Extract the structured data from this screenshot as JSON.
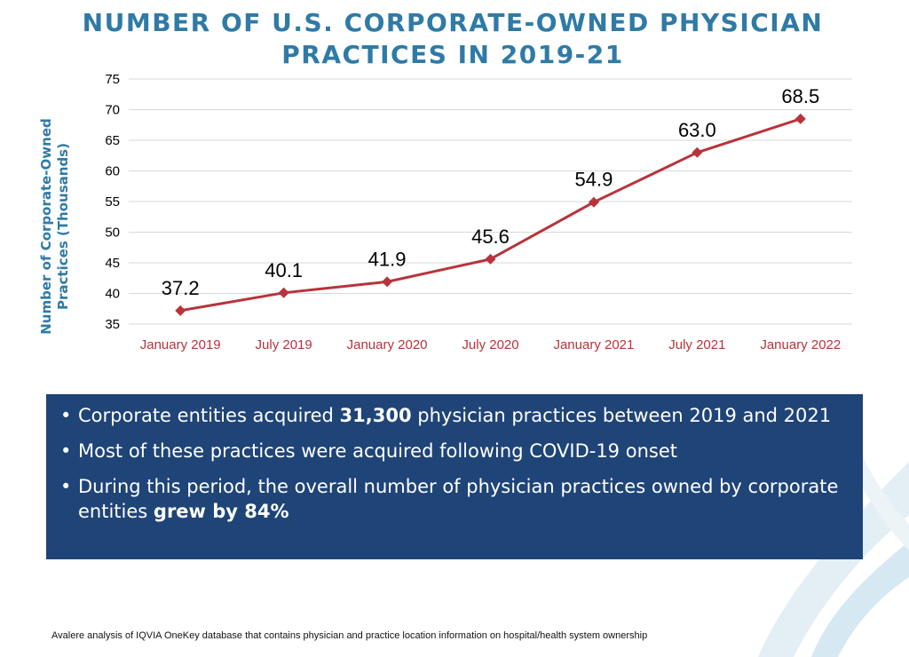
{
  "title_line1": "NUMBER OF U.S. CORPORATE-OWNED PHYSICIAN",
  "title_line2": "PRACTICES IN 2019-21",
  "chart_data": {
    "type": "line",
    "ylabel_line1": "Number of Corporate-Owned",
    "ylabel_line2": "Practices (Thousands)",
    "categories": [
      "January 2019",
      "July 2019",
      "January 2020",
      "July 2020",
      "January 2021",
      "July 2021",
      "January 2022"
    ],
    "values": [
      37.2,
      40.1,
      41.9,
      45.6,
      54.9,
      63.0,
      68.5
    ],
    "data_labels": [
      "37.2",
      "40.1",
      "41.9",
      "45.6",
      "54.9",
      "63.0",
      "68.5"
    ],
    "ylim": [
      35,
      75
    ],
    "yticks": [
      35,
      40,
      45,
      50,
      55,
      60,
      65,
      70,
      75
    ],
    "grid": true,
    "line_color": "#b8333b",
    "tick_color": "#b8333b"
  },
  "bullets": [
    {
      "pre": "Corporate entities acquired ",
      "bold": "31,300",
      "post": " physician practices between 2019 and 2021"
    },
    {
      "pre": "Most of these practices were acquired following COVID-19 onset",
      "bold": "",
      "post": ""
    },
    {
      "pre": "During this period, the overall number of physician practices owned by corporate entities  ",
      "bold": "grew by 84%",
      "post": ""
    }
  ],
  "source": "Avalere analysis of IQVIA OneKey database that contains physician and practice location information on hospital/health system ownership",
  "colors": {
    "title": "#2f7aa6",
    "panel": "#1f4477",
    "line": "#b8333b"
  }
}
